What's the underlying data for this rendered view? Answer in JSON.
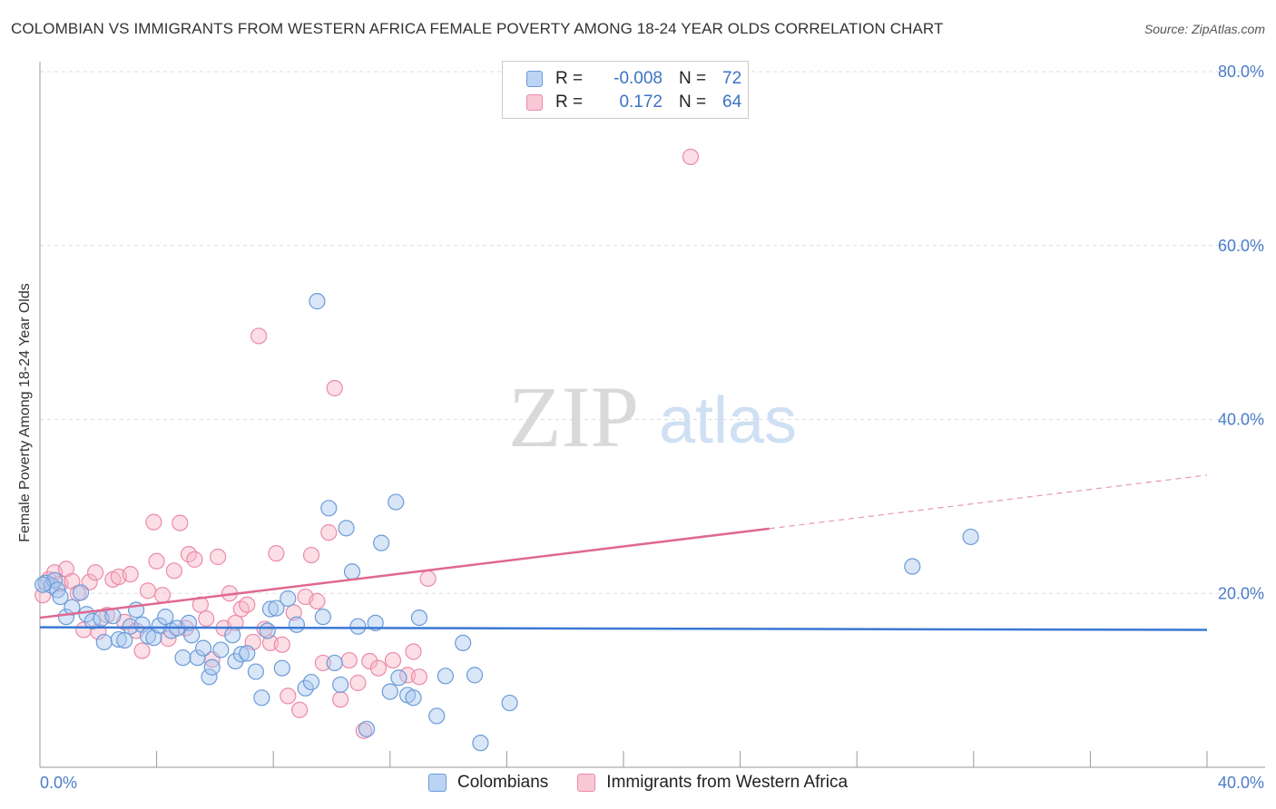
{
  "header": {
    "title": "COLOMBIAN VS IMMIGRANTS FROM WESTERN AFRICA FEMALE POVERTY AMONG 18-24 YEAR OLDS CORRELATION CHART",
    "source": "Source: ZipAtlas.com"
  },
  "watermark": {
    "zip": "ZIP",
    "atlas": "atlas"
  },
  "legend": {
    "colombians": {
      "r_label": "R =",
      "r_value": "-0.008",
      "n_label": "N =",
      "n_value": "72"
    },
    "immigrants": {
      "r_label": "R =",
      "r_value": "0.172",
      "n_label": "N =",
      "n_value": "64"
    }
  },
  "colors": {
    "blue_fill": "#a8c8f0",
    "blue_stroke": "#6c9bd8",
    "blue_line": "#3a78d4",
    "pink_fill": "#f7b6c8",
    "pink_stroke": "#ec8aa8",
    "pink_line": "#e06890",
    "tick_color": "#4a7cc9",
    "grid": "#dddddd"
  },
  "chart_data": {
    "type": "scatter",
    "title": "COLOMBIAN VS IMMIGRANTS FROM WESTERN AFRICA FEMALE POVERTY AMONG 18-24 YEAR OLDS CORRELATION CHART",
    "xlabel": "",
    "ylabel": "Female Poverty Among 18-24 Year Olds",
    "xlim": [
      0,
      40
    ],
    "ylim": [
      0,
      80
    ],
    "x_ticks": [
      "0.0%",
      "40.0%"
    ],
    "y_ticks": [
      "20.0%",
      "40.0%",
      "60.0%",
      "80.0%"
    ],
    "y_tick_values": [
      20,
      40,
      60,
      80
    ],
    "grid": true,
    "legend_position": "top-center",
    "series": [
      {
        "name": "Colombians",
        "color": "#a8c8f0",
        "trend": {
          "x": [
            0,
            40
          ],
          "y": [
            16.1,
            15.8
          ],
          "dashed_from": null
        },
        "points": [
          [
            0.2,
            21.2
          ],
          [
            0.4,
            20.9
          ],
          [
            0.5,
            21.5
          ],
          [
            0.6,
            20.4
          ],
          [
            0.7,
            19.6
          ],
          [
            0.9,
            17.3
          ],
          [
            1.1,
            18.4
          ],
          [
            1.4,
            20.1
          ],
          [
            1.6,
            17.6
          ],
          [
            1.8,
            16.8
          ],
          [
            2.1,
            17.1
          ],
          [
            2.2,
            14.4
          ],
          [
            2.5,
            17.4
          ],
          [
            2.7,
            14.7
          ],
          [
            2.9,
            14.6
          ],
          [
            3.1,
            16.2
          ],
          [
            3.3,
            18.1
          ],
          [
            3.5,
            16.4
          ],
          [
            3.7,
            15.1
          ],
          [
            3.9,
            14.9
          ],
          [
            4.1,
            16.3
          ],
          [
            4.3,
            17.3
          ],
          [
            4.5,
            15.7
          ],
          [
            4.7,
            16.0
          ],
          [
            4.9,
            12.6
          ],
          [
            5.1,
            16.6
          ],
          [
            5.2,
            15.2
          ],
          [
            5.4,
            12.6
          ],
          [
            5.6,
            13.7
          ],
          [
            5.8,
            10.4
          ],
          [
            5.9,
            11.5
          ],
          [
            6.2,
            13.5
          ],
          [
            6.6,
            15.2
          ],
          [
            6.7,
            12.2
          ],
          [
            6.9,
            13.0
          ],
          [
            7.1,
            13.1
          ],
          [
            7.4,
            11.0
          ],
          [
            7.6,
            8.0
          ],
          [
            7.8,
            15.7
          ],
          [
            7.9,
            18.2
          ],
          [
            8.1,
            18.3
          ],
          [
            8.3,
            11.4
          ],
          [
            8.5,
            19.4
          ],
          [
            8.8,
            16.4
          ],
          [
            9.1,
            9.1
          ],
          [
            9.3,
            9.8
          ],
          [
            9.5,
            53.6
          ],
          [
            9.7,
            17.3
          ],
          [
            9.9,
            29.8
          ],
          [
            10.1,
            12.0
          ],
          [
            10.3,
            9.5
          ],
          [
            10.5,
            27.5
          ],
          [
            10.7,
            22.5
          ],
          [
            10.9,
            16.2
          ],
          [
            11.2,
            4.4
          ],
          [
            11.5,
            16.6
          ],
          [
            11.7,
            25.8
          ],
          [
            12.0,
            8.7
          ],
          [
            12.2,
            30.5
          ],
          [
            12.3,
            10.3
          ],
          [
            12.6,
            8.3
          ],
          [
            12.8,
            8.0
          ],
          [
            13.0,
            17.2
          ],
          [
            13.6,
            5.9
          ],
          [
            13.9,
            10.5
          ],
          [
            14.5,
            14.3
          ],
          [
            14.9,
            10.6
          ],
          [
            15.1,
            2.8
          ],
          [
            16.1,
            7.4
          ],
          [
            29.9,
            23.1
          ],
          [
            31.9,
            26.5
          ],
          [
            0.1,
            21.0
          ]
        ]
      },
      {
        "name": "Immigrants from Western Africa",
        "color": "#f7b6c8",
        "trend": {
          "x": [
            0,
            40
          ],
          "y": [
            17.2,
            33.6
          ],
          "dashed_from": 25
        },
        "points": [
          [
            0.1,
            19.8
          ],
          [
            0.3,
            21.6
          ],
          [
            0.5,
            22.4
          ],
          [
            0.7,
            21.1
          ],
          [
            0.9,
            22.8
          ],
          [
            1.1,
            21.4
          ],
          [
            1.3,
            20.0
          ],
          [
            1.5,
            15.8
          ],
          [
            1.7,
            21.3
          ],
          [
            1.9,
            22.4
          ],
          [
            2.0,
            15.6
          ],
          [
            2.3,
            17.5
          ],
          [
            2.5,
            21.6
          ],
          [
            2.7,
            21.9
          ],
          [
            2.9,
            16.7
          ],
          [
            3.1,
            22.2
          ],
          [
            3.3,
            15.7
          ],
          [
            3.5,
            13.4
          ],
          [
            3.7,
            20.3
          ],
          [
            3.9,
            28.2
          ],
          [
            4.0,
            23.7
          ],
          [
            4.2,
            19.8
          ],
          [
            4.4,
            14.8
          ],
          [
            4.6,
            22.6
          ],
          [
            4.8,
            28.1
          ],
          [
            5.0,
            16.0
          ],
          [
            5.1,
            24.5
          ],
          [
            5.3,
            23.9
          ],
          [
            5.5,
            18.7
          ],
          [
            5.7,
            17.1
          ],
          [
            5.9,
            12.4
          ],
          [
            6.1,
            24.2
          ],
          [
            6.3,
            16.0
          ],
          [
            6.5,
            20.0
          ],
          [
            6.7,
            16.6
          ],
          [
            6.9,
            18.2
          ],
          [
            7.1,
            18.7
          ],
          [
            7.3,
            14.4
          ],
          [
            7.5,
            49.6
          ],
          [
            7.7,
            15.9
          ],
          [
            7.9,
            14.3
          ],
          [
            8.1,
            24.6
          ],
          [
            8.3,
            14.1
          ],
          [
            8.5,
            8.2
          ],
          [
            8.7,
            17.8
          ],
          [
            8.9,
            6.6
          ],
          [
            9.1,
            19.6
          ],
          [
            9.3,
            24.4
          ],
          [
            9.5,
            19.1
          ],
          [
            9.7,
            12.0
          ],
          [
            9.9,
            27.0
          ],
          [
            10.1,
            43.6
          ],
          [
            10.3,
            7.8
          ],
          [
            10.6,
            12.3
          ],
          [
            10.9,
            9.7
          ],
          [
            11.1,
            4.2
          ],
          [
            11.3,
            12.2
          ],
          [
            11.6,
            11.4
          ],
          [
            12.1,
            12.3
          ],
          [
            12.6,
            10.6
          ],
          [
            12.8,
            13.3
          ],
          [
            13.0,
            10.4
          ],
          [
            13.3,
            21.7
          ],
          [
            22.3,
            70.2
          ]
        ]
      }
    ]
  },
  "bottom_legend": {
    "colombians": "Colombians",
    "immigrants": "Immigrants from Western Africa"
  }
}
